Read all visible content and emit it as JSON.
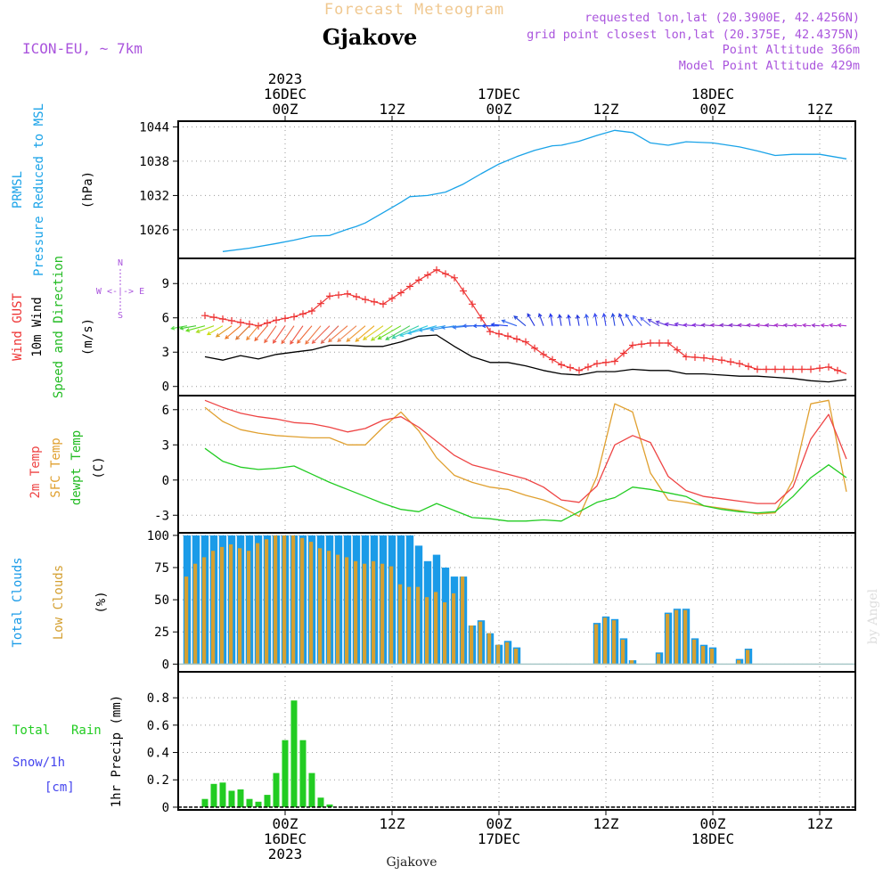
{
  "header": {
    "supertitle": "Forecast Meteogram",
    "location": "Gjakove",
    "model": "ICON-EU, ~ 7km",
    "requested": "requested lon,lat (20.3900E, 42.4256N)",
    "grid_point": "grid point closest lon,lat (20.375E, 42.4375N)",
    "point_altitude": "Point Altitude 366m",
    "model_altitude": "Model Point Altitude 429m",
    "footer_location": "Gjakove",
    "watermark": "by Angel"
  },
  "colors": {
    "prmsl": "#1aa3e8",
    "gust": "#ee3333",
    "wind10m": "#000000",
    "t2m": "#ee4444",
    "sfc": "#e0a030",
    "dewpt": "#22cc22",
    "total_clouds": "#1a9be8",
    "low_clouds": "#d4a032",
    "rain": "#22cc22",
    "snow": "#4444ee",
    "header_purple": "#aa55dd",
    "supertitle": "#f0c890"
  },
  "chart_data": [
    {
      "type": "line",
      "panel": "pressure",
      "ylabel_lines": [
        "PRMSL",
        "Pressure Reduced to MSL"
      ],
      "unit": "(hPa)",
      "ylim": [
        1021,
        1045
      ],
      "yticks": [
        "1026",
        "1032",
        "1038",
        "1044"
      ],
      "grid": true,
      "series": [
        {
          "name": "PRMSL",
          "x": [
            -7,
            -4,
            -1,
            1,
            3,
            5,
            7,
            8,
            9,
            11,
            13,
            14,
            16,
            18,
            20,
            22,
            24,
            26,
            28,
            30,
            31,
            33,
            35,
            37,
            39,
            41,
            43,
            45,
            48,
            51,
            53,
            55,
            57,
            60,
            63
          ],
          "y": [
            1022.2,
            1022.8,
            1023.6,
            1024.2,
            1024.9,
            1025.0,
            1026.1,
            1026.6,
            1027.2,
            1029.0,
            1030.8,
            1031.8,
            1032.0,
            1032.6,
            1034.0,
            1035.8,
            1037.5,
            1038.8,
            1039.9,
            1040.7,
            1040.8,
            1041.5,
            1042.5,
            1043.4,
            1043.0,
            1041.2,
            1040.8,
            1041.4,
            1041.2,
            1040.5,
            1039.8,
            1039.0,
            1039.2,
            1039.2,
            1038.4
          ]
        }
      ]
    },
    {
      "type": "line",
      "panel": "wind",
      "ylabel_lines": [
        "Wind GUST",
        "10m Wind",
        "Speed and Direction"
      ],
      "unit": "(m/s)",
      "compass": [
        "N",
        "W <-|-> E",
        "S"
      ],
      "ylim": [
        -0.8,
        11.2
      ],
      "yticks": [
        "0",
        "3",
        "6",
        "9"
      ],
      "grid": true,
      "series": [
        {
          "name": "Wind GUST",
          "x": [
            -9,
            -7,
            -5,
            -3,
            -1,
            1,
            3,
            5,
            7,
            9,
            11,
            13,
            15,
            17,
            19,
            21,
            23,
            25,
            27,
            29,
            31,
            33,
            35,
            37,
            39,
            41,
            43,
            45,
            47,
            49,
            51,
            53,
            55,
            57,
            59,
            61,
            63
          ],
          "y": [
            6.2,
            5.9,
            5.6,
            5.3,
            5.8,
            6.1,
            6.6,
            7.9,
            8.1,
            7.6,
            7.2,
            8.2,
            9.3,
            10.2,
            9.5,
            7.2,
            4.8,
            4.4,
            3.9,
            2.8,
            1.9,
            1.4,
            2.0,
            2.2,
            3.6,
            3.8,
            3.8,
            2.6,
            2.5,
            2.3,
            2.0,
            1.5,
            1.5,
            1.5,
            1.5,
            1.7,
            1.1
          ]
        },
        {
          "name": "10m Wind",
          "x": [
            -9,
            -7,
            -5,
            -3,
            -1,
            1,
            3,
            5,
            7,
            9,
            11,
            13,
            15,
            17,
            19,
            21,
            23,
            25,
            27,
            29,
            31,
            33,
            35,
            37,
            39,
            41,
            43,
            45,
            47,
            49,
            51,
            53,
            55,
            57,
            59,
            61,
            63
          ],
          "y": [
            2.6,
            2.3,
            2.7,
            2.4,
            2.8,
            3.0,
            3.2,
            3.6,
            3.6,
            3.5,
            3.5,
            3.9,
            4.4,
            4.5,
            3.5,
            2.6,
            2.1,
            2.1,
            1.8,
            1.4,
            1.1,
            1.0,
            1.3,
            1.3,
            1.5,
            1.4,
            1.4,
            1.1,
            1.1,
            1.0,
            0.9,
            0.9,
            0.8,
            0.7,
            0.5,
            0.4,
            0.6
          ]
        }
      ]
    },
    {
      "type": "line",
      "panel": "temperature",
      "ylabel_lines": [
        "2m Temp",
        "SFC Temp",
        "dewpt Temp"
      ],
      "unit": "(C)",
      "ylim": [
        -4.5,
        7.2
      ],
      "yticks": [
        "-3",
        "0",
        "3",
        "6"
      ],
      "grid": true,
      "series": [
        {
          "name": "2m Temp",
          "x": [
            -9,
            -7,
            -5,
            -3,
            -1,
            1,
            3,
            5,
            7,
            9,
            11,
            13,
            15,
            17,
            19,
            21,
            23,
            25,
            27,
            29,
            31,
            33,
            35,
            37,
            39,
            41,
            43,
            45,
            47,
            49,
            51,
            53,
            55,
            57,
            59,
            61,
            63
          ],
          "y": [
            6.8,
            6.2,
            5.7,
            5.4,
            5.2,
            4.9,
            4.8,
            4.5,
            4.1,
            4.4,
            5.1,
            5.4,
            4.5,
            3.3,
            2.1,
            1.3,
            0.9,
            0.5,
            0.1,
            -0.6,
            -1.7,
            -1.9,
            -0.5,
            3.0,
            3.8,
            3.2,
            0.3,
            -0.9,
            -1.4,
            -1.6,
            -1.8,
            -2.0,
            -2.0,
            -0.6,
            3.5,
            5.6,
            1.8
          ]
        },
        {
          "name": "SFC Temp",
          "x": [
            -9,
            -7,
            -5,
            -3,
            -1,
            1,
            3,
            5,
            7,
            9,
            11,
            13,
            15,
            17,
            19,
            21,
            23,
            25,
            27,
            29,
            31,
            33,
            35,
            37,
            39,
            41,
            43,
            45,
            47,
            49,
            51,
            53,
            55,
            57,
            59,
            61,
            63
          ],
          "y": [
            6.2,
            5.0,
            4.3,
            4.0,
            3.8,
            3.7,
            3.6,
            3.6,
            3.0,
            3.0,
            4.5,
            5.8,
            4.2,
            1.9,
            0.4,
            -0.2,
            -0.6,
            -0.8,
            -1.3,
            -1.7,
            -2.3,
            -3.1,
            0.3,
            6.5,
            5.8,
            0.6,
            -1.7,
            -1.9,
            -2.2,
            -2.4,
            -2.6,
            -2.9,
            -2.8,
            0.0,
            6.5,
            6.8,
            -1.0
          ]
        },
        {
          "name": "dewpt Temp",
          "x": [
            -9,
            -7,
            -5,
            -3,
            -1,
            1,
            3,
            5,
            7,
            9,
            11,
            13,
            15,
            17,
            19,
            21,
            23,
            25,
            27,
            29,
            31,
            33,
            35,
            37,
            39,
            41,
            43,
            45,
            47,
            49,
            51,
            53,
            55,
            57,
            59,
            61,
            63
          ],
          "y": [
            2.7,
            1.6,
            1.1,
            0.9,
            1.0,
            1.2,
            0.5,
            -0.2,
            -0.8,
            -1.4,
            -2.0,
            -2.5,
            -2.7,
            -2.0,
            -2.6,
            -3.2,
            -3.3,
            -3.5,
            -3.5,
            -3.4,
            -3.5,
            -2.7,
            -1.9,
            -1.5,
            -0.6,
            -0.8,
            -1.1,
            -1.4,
            -2.2,
            -2.5,
            -2.7,
            -2.8,
            -2.7,
            -1.4,
            0.2,
            1.3,
            0.2
          ]
        }
      ]
    },
    {
      "type": "bar",
      "panel": "clouds",
      "ylabel_lines": [
        "Total Clouds",
        "Low Clouds"
      ],
      "unit": "(%)",
      "ylim": [
        -6,
        102
      ],
      "yticks": [
        "0",
        "25",
        "50",
        "75",
        "100"
      ],
      "grid": true,
      "hours": [
        -11,
        -10,
        -9,
        -8,
        -7,
        -6,
        -5,
        -4,
        -3,
        -2,
        -1,
        0,
        1,
        2,
        3,
        4,
        5,
        6,
        7,
        8,
        9,
        10,
        11,
        12,
        13,
        14,
        15,
        16,
        17,
        18,
        19,
        20,
        21,
        22,
        23,
        24,
        25,
        26,
        27,
        28,
        29,
        30,
        31,
        32,
        33,
        34,
        35,
        36,
        37,
        38,
        39,
        40,
        41,
        42,
        43,
        44,
        45,
        46,
        47,
        48,
        49,
        50,
        51,
        52,
        53,
        54,
        55,
        56,
        57,
        58,
        59,
        60,
        61,
        62,
        63
      ],
      "series": [
        {
          "name": "Total Clouds",
          "values": [
            100,
            100,
            100,
            100,
            100,
            100,
            100,
            100,
            100,
            100,
            100,
            100,
            100,
            100,
            100,
            100,
            100,
            100,
            100,
            100,
            100,
            100,
            100,
            100,
            100,
            100,
            92,
            80,
            85,
            75,
            68,
            68,
            30,
            34,
            24,
            15,
            18,
            13,
            0,
            0,
            0,
            0,
            0,
            0,
            0,
            0,
            32,
            37,
            35,
            20,
            3,
            0,
            0,
            9,
            40,
            43,
            43,
            20,
            15,
            13,
            0,
            0,
            4,
            12,
            0,
            0,
            0,
            0,
            0,
            0,
            0,
            0,
            0,
            0,
            0
          ]
        },
        {
          "name": "Low Clouds",
          "values": [
            68,
            78,
            83,
            88,
            91,
            93,
            90,
            88,
            94,
            97,
            100,
            100,
            100,
            98,
            95,
            90,
            88,
            85,
            83,
            80,
            78,
            80,
            78,
            76,
            62,
            60,
            60,
            52,
            56,
            48,
            55,
            68,
            30,
            33,
            24,
            15,
            17,
            12,
            0,
            0,
            0,
            0,
            0,
            0,
            0,
            0,
            31,
            36,
            34,
            19,
            3,
            0,
            0,
            8,
            39,
            42,
            42,
            19,
            14,
            12,
            0,
            0,
            3,
            11,
            0,
            0,
            0,
            0,
            0,
            0,
            0,
            0,
            0,
            0,
            0
          ]
        }
      ]
    },
    {
      "type": "bar",
      "panel": "precip",
      "ylabel_lines": [
        "Total",
        "Rain",
        "Snow/1h",
        "[cm]"
      ],
      "axis_title": "1hr Precip (mm)",
      "ylim": [
        -0.02,
        0.99
      ],
      "yticks": [
        "0",
        "0.2",
        "0.4",
        "0.6",
        "0.8"
      ],
      "grid": true,
      "hours": [
        -9,
        -8,
        -7,
        -6,
        -5,
        -4,
        -3,
        -2,
        -1,
        0,
        1,
        2,
        3,
        4,
        5
      ],
      "series": [
        {
          "name": "Total Rain",
          "values": [
            0.06,
            0.17,
            0.18,
            0.12,
            0.13,
            0.06,
            0.04,
            0.09,
            0.25,
            0.49,
            0.78,
            0.49,
            0.25,
            0.07,
            0.02
          ]
        }
      ]
    }
  ],
  "time_axis": {
    "range_hours": [
      -12,
      64
    ],
    "top_dates": [
      {
        "hour": 0,
        "lines": [
          "2023",
          "16DEC",
          "00Z"
        ]
      },
      {
        "hour": 12,
        "lines": [
          "12Z"
        ]
      },
      {
        "hour": 24,
        "lines": [
          "17DEC",
          "00Z"
        ]
      },
      {
        "hour": 36,
        "lines": [
          "12Z"
        ]
      },
      {
        "hour": 48,
        "lines": [
          "18DEC",
          "00Z"
        ]
      },
      {
        "hour": 60,
        "lines": [
          "12Z"
        ]
      }
    ],
    "bottom_dates": [
      {
        "hour": 0,
        "lines": [
          "00Z",
          "16DEC",
          "2023"
        ]
      },
      {
        "hour": 12,
        "lines": [
          "12Z"
        ]
      },
      {
        "hour": 24,
        "lines": [
          "00Z",
          "17DEC"
        ]
      },
      {
        "hour": 36,
        "lines": [
          "12Z"
        ]
      },
      {
        "hour": 48,
        "lines": [
          "00Z",
          "18DEC"
        ]
      },
      {
        "hour": 60,
        "lines": [
          "12Z"
        ]
      }
    ],
    "major_hours": [
      0,
      12,
      24,
      36,
      48,
      60
    ]
  },
  "wind_arrows": {
    "hours": [
      -11,
      -10,
      -9,
      -8,
      -7,
      -6,
      -5,
      -4,
      -3,
      -2,
      -1,
      0,
      1,
      2,
      3,
      4,
      5,
      6,
      7,
      8,
      9,
      10,
      11,
      12,
      13,
      14,
      15,
      16,
      17,
      18,
      19,
      20,
      21,
      22,
      23,
      24,
      25,
      26,
      27,
      28,
      29,
      30,
      31,
      32,
      33,
      34,
      35,
      36,
      37,
      38,
      39,
      40,
      41,
      42,
      43,
      44,
      45,
      46,
      47,
      48,
      49,
      50,
      51,
      52,
      53,
      54,
      55,
      56,
      57,
      58,
      59,
      60,
      61,
      62,
      63
    ],
    "direction_from_deg": [
      80,
      80,
      75,
      70,
      60,
      55,
      50,
      45,
      40,
      40,
      35,
      35,
      35,
      35,
      40,
      40,
      45,
      45,
      50,
      50,
      50,
      50,
      55,
      55,
      60,
      60,
      65,
      70,
      75,
      80,
      80,
      85,
      85,
      90,
      90,
      90,
      95,
      110,
      130,
      150,
      160,
      170,
      170,
      170,
      170,
      170,
      170,
      170,
      170,
      160,
      150,
      140,
      130,
      120,
      110,
      100,
      100,
      95,
      95,
      95,
      95,
      95,
      95,
      95,
      95,
      95,
      95,
      95,
      95,
      95,
      95,
      95,
      95,
      95,
      95
    ],
    "colors": [
      "#55dd44",
      "#44cc33",
      "#66dd22",
      "#aadd22",
      "#ccdd11",
      "#dd9922",
      "#ee7722",
      "#dd7733",
      "#ee8833",
      "#ee6633",
      "#ee6644",
      "#ee5544",
      "#ee6644",
      "#ee5544",
      "#ee6633",
      "#ee7744",
      "#ee6655",
      "#dd6655",
      "#ee7744",
      "#ee8855",
      "#ee9933",
      "#eeaa22",
      "#ddcc22",
      "#aadd22",
      "#66dd22",
      "#44cc55",
      "#33ccaa",
      "#33ccdd",
      "#33bbee",
      "#33aaee",
      "#3399ee",
      "#3388ee",
      "#3377ee",
      "#3366ee",
      "#2255ee",
      "#2244ee",
      "#2244ee",
      "#3366ee",
      "#2244dd",
      "#2233dd",
      "#2233dd",
      "#2233ee",
      "#2233dd",
      "#2233ee",
      "#2233dd",
      "#3355ee",
      "#3344ee",
      "#3344ee",
      "#2244dd",
      "#2233dd",
      "#3355ee",
      "#4455ee",
      "#5566ee",
      "#5544dd",
      "#6644dd",
      "#7733dd",
      "#7733dd",
      "#8833dd",
      "#8833dd",
      "#8833cc",
      "#9933cc",
      "#8833cc",
      "#8833cc",
      "#9933cc",
      "#9933cc",
      "#aa33cc",
      "#9933cc",
      "#aa33cc",
      "#9933cc",
      "#aa33cc",
      "#aa33cc",
      "#9933cc",
      "#aa33cc",
      "#aa33cc",
      "#aa33cc"
    ]
  }
}
